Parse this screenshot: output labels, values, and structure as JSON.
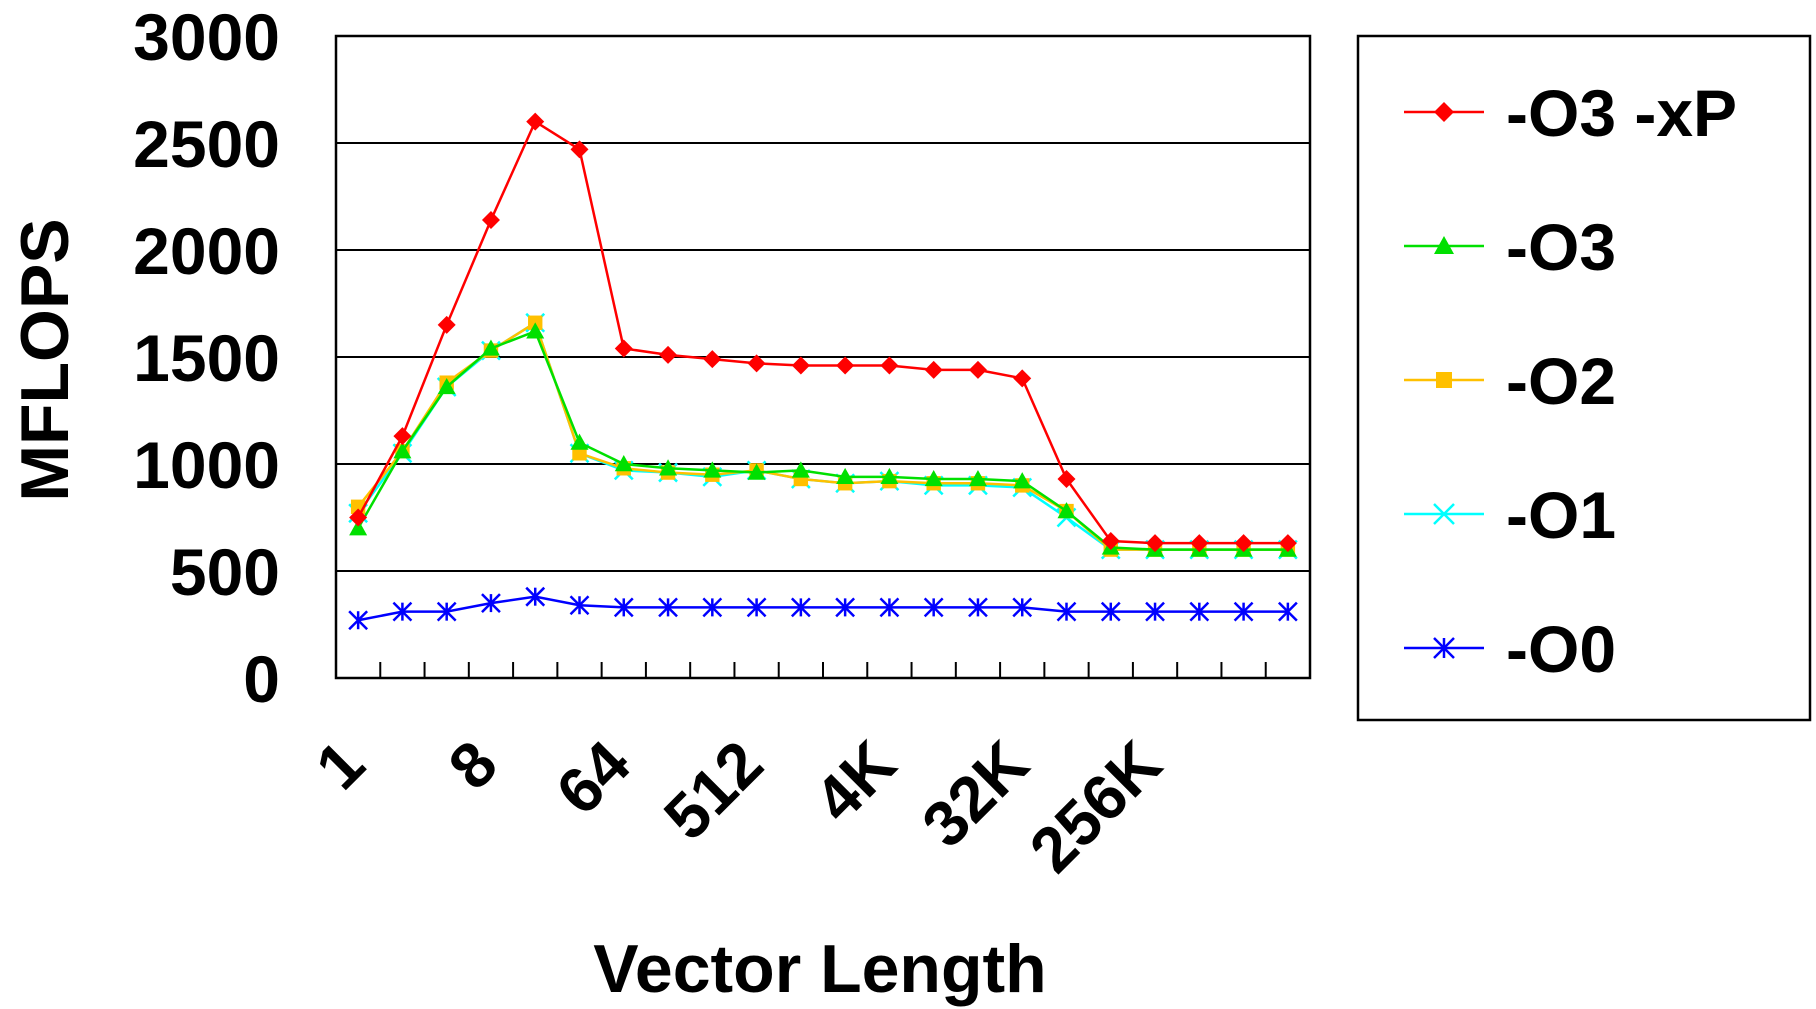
{
  "chart_data": {
    "type": "line",
    "title": "",
    "xlabel": "Vector Length",
    "ylabel": "MFLOPS",
    "ylim": [
      0,
      3000
    ],
    "yticks": [
      "0",
      "500",
      "1000",
      "1500",
      "2000",
      "2500",
      "3000"
    ],
    "x_tick_labels": [
      "1",
      "8",
      "64",
      "512",
      "4K",
      "32K",
      "256K"
    ],
    "x": [
      "1",
      "2",
      "4",
      "8",
      "16",
      "32",
      "64",
      "128",
      "256",
      "512",
      "1K",
      "2K",
      "4K",
      "8K",
      "16K",
      "32K",
      "64K",
      "128K",
      "256K",
      "512K",
      "1M",
      "2M"
    ],
    "grid": "horizontal",
    "legend_position": "right",
    "series": [
      {
        "name": "-O3 -xP",
        "color": "#ff0000",
        "marker": "diamond",
        "values": [
          750,
          1130,
          1650,
          2140,
          2600,
          2470,
          1540,
          1510,
          1490,
          1470,
          1460,
          1460,
          1460,
          1440,
          1440,
          1400,
          930,
          640,
          630,
          630,
          630,
          630
        ]
      },
      {
        "name": "-O3",
        "color": "#00e000",
        "marker": "triangle",
        "values": [
          700,
          1060,
          1360,
          1540,
          1620,
          1100,
          1000,
          980,
          970,
          960,
          970,
          940,
          940,
          930,
          930,
          920,
          780,
          610,
          600,
          600,
          600,
          600
        ]
      },
      {
        "name": "-O2",
        "color": "#ffc000",
        "marker": "square",
        "values": [
          800,
          1060,
          1380,
          1530,
          1660,
          1050,
          980,
          960,
          950,
          970,
          930,
          910,
          920,
          910,
          910,
          900,
          780,
          600,
          600,
          600,
          600,
          600
        ]
      },
      {
        "name": "-O1",
        "color": "#00ffff",
        "marker": "x",
        "values": [
          770,
          1050,
          1360,
          1530,
          1660,
          1050,
          970,
          960,
          940,
          970,
          930,
          910,
          920,
          900,
          900,
          890,
          750,
          600,
          600,
          600,
          600,
          600
        ]
      },
      {
        "name": "-O0",
        "color": "#0000ff",
        "marker": "star",
        "values": [
          270,
          310,
          310,
          350,
          380,
          340,
          330,
          330,
          330,
          330,
          330,
          330,
          330,
          330,
          330,
          330,
          310,
          310,
          310,
          310,
          310,
          310
        ]
      }
    ]
  }
}
